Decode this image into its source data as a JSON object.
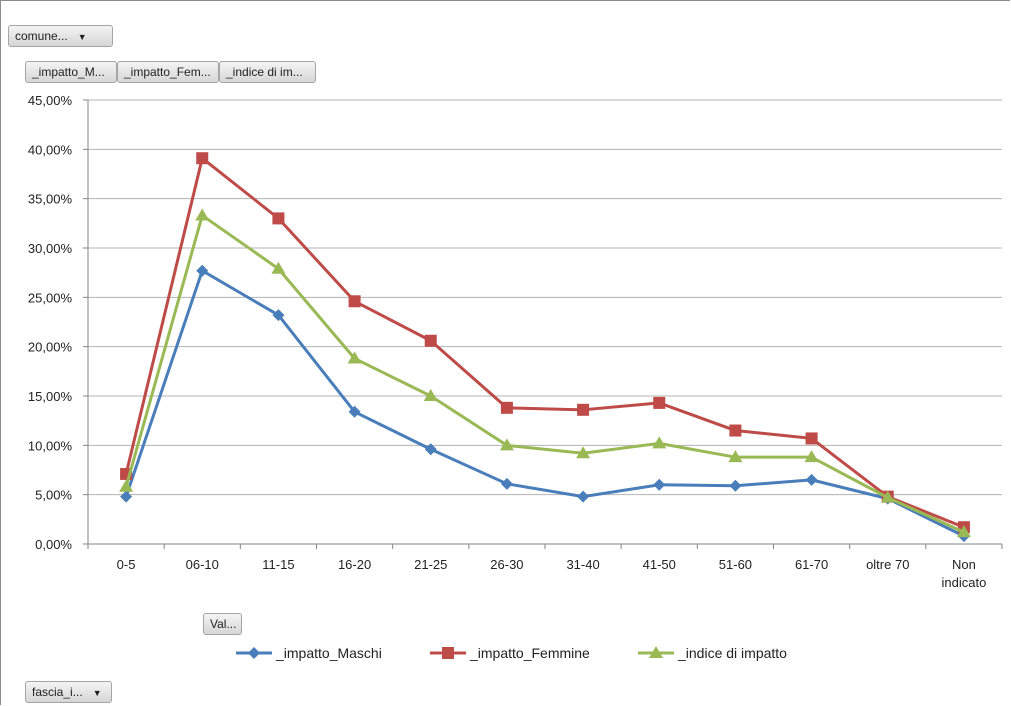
{
  "filters": {
    "report_filter": "comune...",
    "value_fields": [
      "_impatto_M...",
      "_impatto_Fem...",
      "_indice di im..."
    ],
    "values_button": "Val...",
    "axis_field": "fascia_i..."
  },
  "colors": {
    "maschi": "#4a7ebb",
    "femmine": "#be4b48",
    "indice": "#98b954",
    "grid": "#b3b3b3",
    "axis": "#868686"
  },
  "chart_data": {
    "type": "line",
    "categories": [
      "0-5",
      "06-10",
      "11-15",
      "16-20",
      "21-25",
      "26-30",
      "31-40",
      "41-50",
      "51-60",
      "61-70",
      "oltre 70",
      "Non indicato"
    ],
    "category_lines": [
      [
        "0-5"
      ],
      [
        "06-10"
      ],
      [
        "11-15"
      ],
      [
        "16-20"
      ],
      [
        "21-25"
      ],
      [
        "26-30"
      ],
      [
        "31-40"
      ],
      [
        "41-50"
      ],
      [
        "51-60"
      ],
      [
        "61-70"
      ],
      [
        "oltre 70"
      ],
      [
        "Non",
        "indicato"
      ]
    ],
    "yticks": [
      "0,00%",
      "5,00%",
      "10,00%",
      "15,00%",
      "20,00%",
      "25,00%",
      "30,00%",
      "35,00%",
      "40,00%",
      "45,00%"
    ],
    "ylim": [
      0,
      45
    ],
    "grid": true,
    "legend_position": "bottom",
    "series": [
      {
        "name": "_impatto_Maschi",
        "color": "#4a7ebb",
        "marker": "diamond",
        "values": [
          4.8,
          27.7,
          23.2,
          13.4,
          9.6,
          6.1,
          4.8,
          6.0,
          5.9,
          6.5,
          4.6,
          0.8
        ]
      },
      {
        "name": "_impatto_Femmine",
        "color": "#be4b48",
        "marker": "square",
        "values": [
          7.1,
          39.1,
          33.0,
          24.6,
          20.6,
          13.8,
          13.6,
          14.3,
          11.5,
          10.7,
          4.8,
          1.7
        ]
      },
      {
        "name": "_indice di impatto",
        "color": "#98b954",
        "marker": "triangle",
        "values": [
          5.8,
          33.3,
          27.9,
          18.8,
          15.0,
          10.0,
          9.2,
          10.2,
          8.8,
          8.8,
          4.7,
          1.2
        ]
      }
    ]
  }
}
